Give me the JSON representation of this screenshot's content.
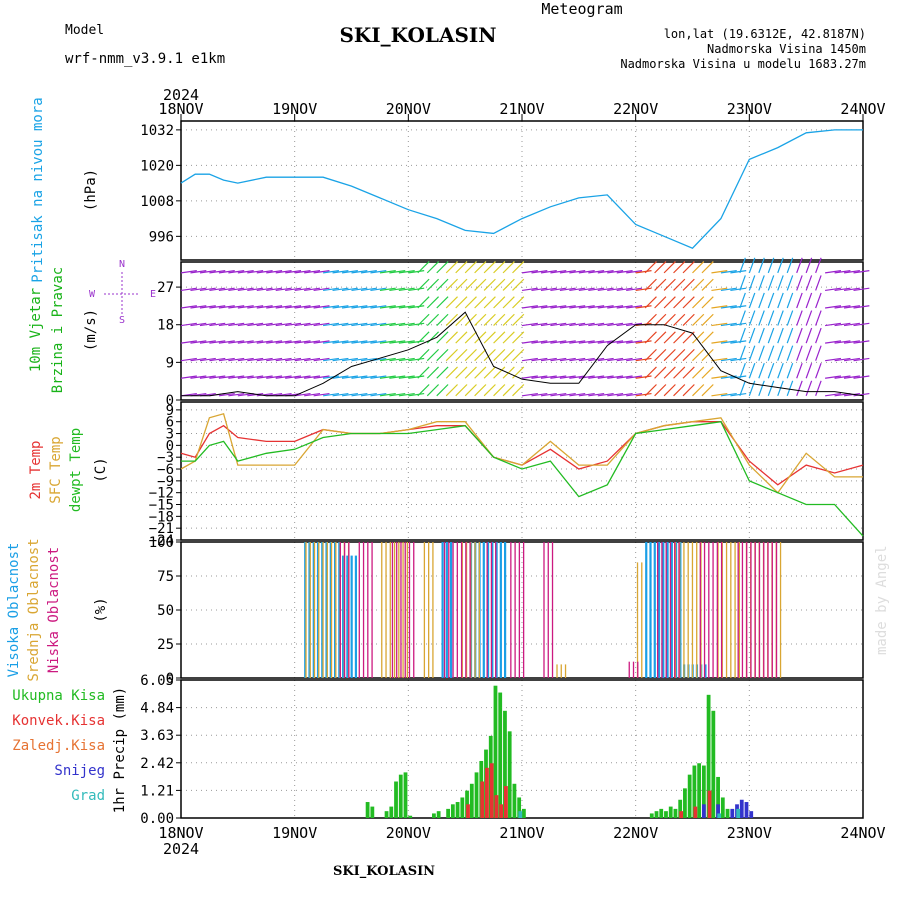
{
  "header": {
    "title": "SKI_KOLASIN",
    "model_label": "Model",
    "model_value": "wrf-nmm_v3.9.1 e1km",
    "meteogram_label": "Meteogram",
    "location": "lon,lat (19.6312E, 42.8187N)",
    "altitude": "Nadmorska Visina 1450m",
    "model_altitude": "Nadmorska Visina u modelu 1683.27m",
    "footer": "SKI_KOLASIN",
    "watermark": "made by Angel",
    "year": "2024"
  },
  "colors": {
    "pressure": "#1aa3e6",
    "wind_label": "#19b319",
    "purple": "#9a33cc",
    "t2m": "#e63333",
    "sfc": "#d9a633",
    "dewpt": "#22bb22",
    "high_cloud": "#1a9fe6",
    "mid_cloud": "#d9a633",
    "low_cloud": "#cc1a80",
    "total_precip": "#22bb22",
    "conv_precip": "#e63333",
    "frz_precip": "#e67333",
    "snow": "#3333cc",
    "grad": "#33bbbb",
    "grid": "#999999"
  },
  "time_axis": {
    "tick_labels": [
      "18NOV",
      "19NOV",
      "20NOV",
      "21NOV",
      "22NOV",
      "23NOV",
      "24NOV"
    ]
  },
  "chart_data": [
    {
      "type": "line",
      "panel": "pressure",
      "ylabel": "Pritisak na nivou mora",
      "unit": "(hPa)",
      "yticks": [
        996,
        1008,
        1020,
        1032
      ],
      "ylim": [
        988,
        1035
      ],
      "series": [
        {
          "x": [
            0,
            3,
            6,
            9,
            12,
            18,
            24,
            30,
            36,
            42,
            48,
            54,
            60,
            66,
            72,
            78,
            84,
            90,
            96,
            102,
            108,
            114,
            120,
            126,
            132,
            138,
            144
          ],
          "values": [
            1014,
            1017,
            1017,
            1015,
            1014,
            1016,
            1016,
            1016,
            1013,
            1009,
            1005,
            1002,
            998,
            997,
            1002,
            1006,
            1009,
            1010,
            1000,
            996,
            992,
            1002,
            1022,
            1026,
            1031,
            1032,
            1032
          ]
        }
      ]
    },
    {
      "type": "line",
      "panel": "wind",
      "ylabel": [
        "10m Vjetar",
        "Brzina i Pravac"
      ],
      "unit": "(m/s)",
      "compass": [
        "N",
        "W",
        "E",
        "S"
      ],
      "yticks": [
        0,
        9,
        18,
        27
      ],
      "ylim": [
        0,
        33
      ],
      "series": [
        {
          "x": [
            0,
            6,
            12,
            18,
            24,
            30,
            36,
            42,
            48,
            54,
            60,
            66,
            72,
            78,
            84,
            90,
            96,
            102,
            108,
            114,
            120,
            126,
            132,
            138,
            144
          ],
          "values": [
            1,
            1,
            2,
            1,
            1,
            4,
            8,
            10,
            12,
            15,
            21,
            8,
            5,
            4,
            4,
            13,
            18,
            18,
            16,
            7,
            4,
            3,
            2,
            2,
            1
          ]
        }
      ]
    },
    {
      "type": "line",
      "panel": "temperature",
      "ylabel": [
        "2m Temp",
        "SFC Temp",
        "dewpt Temp"
      ],
      "unit": "(C)",
      "yticks": [
        -24,
        -21,
        -18,
        -15,
        -12,
        -9,
        -6,
        -3,
        0,
        3,
        6,
        9
      ],
      "ylim": [
        -24,
        11
      ],
      "series": [
        {
          "name": "2m Temp",
          "x": [
            0,
            3,
            6,
            9,
            12,
            18,
            24,
            30,
            36,
            42,
            48,
            54,
            60,
            66,
            72,
            78,
            84,
            90,
            96,
            102,
            108,
            114,
            120,
            126,
            132,
            138,
            144
          ],
          "values": [
            -2,
            -3,
            3,
            5,
            2,
            1,
            1,
            4,
            3,
            3,
            4,
            5,
            5,
            -3,
            -5,
            -1,
            -6,
            -4,
            3,
            5,
            6,
            6,
            -4,
            -10,
            -5,
            -7,
            -5
          ]
        },
        {
          "name": "SFC Temp",
          "x": [
            0,
            3,
            6,
            9,
            12,
            18,
            24,
            30,
            36,
            42,
            48,
            54,
            60,
            66,
            72,
            78,
            84,
            90,
            96,
            102,
            108,
            114,
            120,
            126,
            132,
            138,
            144
          ],
          "values": [
            -6,
            -4,
            7,
            8,
            -5,
            -5,
            -5,
            4,
            3,
            3,
            4,
            6,
            6,
            -3,
            -5,
            1,
            -5,
            -5,
            3,
            5,
            6,
            7,
            -5,
            -12,
            -2,
            -8,
            -8
          ]
        },
        {
          "name": "dewpt Temp",
          "x": [
            0,
            3,
            6,
            9,
            12,
            18,
            24,
            30,
            36,
            42,
            48,
            54,
            60,
            66,
            72,
            78,
            84,
            90,
            96,
            102,
            108,
            114,
            120,
            126,
            132,
            138,
            144
          ],
          "values": [
            -4,
            -4,
            0,
            1,
            -4,
            -2,
            -1,
            2,
            3,
            3,
            3,
            4,
            5,
            -3,
            -6,
            -4,
            -13,
            -10,
            3,
            4,
            5,
            6,
            -9,
            -12,
            -15,
            -15,
            -23
          ]
        }
      ]
    },
    {
      "type": "bar",
      "panel": "cloud",
      "ylabel": [
        "Visoka Oblacnost",
        "Srednja Oblacnost",
        "Niska Oblacnost"
      ],
      "unit": "(%)",
      "yticks": [
        0,
        25,
        50,
        75,
        100
      ],
      "ylim": [
        0,
        100
      ],
      "series": [
        {
          "name": "Visoka Oblacnost",
          "segments": [
            [
              26,
              34,
              100
            ],
            [
              34,
              37,
              90
            ],
            [
              55,
              57,
              100
            ],
            [
              61,
              69,
              100
            ],
            [
              98,
              106,
              100
            ],
            [
              106,
              111,
              10
            ]
          ]
        },
        {
          "name": "Srednja Oblacnost",
          "segments": [
            [
              26,
              35,
              100
            ],
            [
              42,
              48,
              100
            ],
            [
              51,
              53,
              100
            ],
            [
              59,
              63,
              100
            ],
            [
              79,
              81,
              10
            ],
            [
              96,
              97,
              85
            ],
            [
              104,
              110,
              100
            ],
            [
              113,
              118,
              100
            ],
            [
              119,
              127,
              100
            ]
          ]
        },
        {
          "name": "Niska Oblacnost",
          "segments": [
            [
              33,
              35,
              100
            ],
            [
              37,
              40,
              100
            ],
            [
              44,
              49,
              100
            ],
            [
              55,
              61,
              100
            ],
            [
              64,
              66,
              100
            ],
            [
              69,
              72,
              100
            ],
            [
              76,
              78,
              100
            ],
            [
              94,
              96,
              12
            ],
            [
              100,
              105,
              100
            ],
            [
              109,
              114,
              100
            ],
            [
              117,
              126,
              100
            ]
          ]
        }
      ]
    },
    {
      "type": "bar",
      "panel": "precip",
      "legend": [
        "Ukupna Kisa",
        "Konvek.Kisa",
        "Zaledj.Kisa",
        "Snijeg",
        "Grad"
      ],
      "ylabel": "1hr Precip (mm)",
      "yticks": [
        0,
        1.21,
        2.42,
        3.63,
        4.84,
        6.05
      ],
      "ylim": [
        0,
        6.05
      ],
      "total": [
        {
          "h": 39,
          "v": 0.7
        },
        {
          "h": 40,
          "v": 0.5
        },
        {
          "h": 43,
          "v": 0.3
        },
        {
          "h": 44,
          "v": 0.5
        },
        {
          "h": 45,
          "v": 1.6
        },
        {
          "h": 46,
          "v": 1.9
        },
        {
          "h": 47,
          "v": 2.0
        },
        {
          "h": 48,
          "v": 0.1
        },
        {
          "h": 53,
          "v": 0.2
        },
        {
          "h": 54,
          "v": 0.3
        },
        {
          "h": 56,
          "v": 0.4
        },
        {
          "h": 57,
          "v": 0.6
        },
        {
          "h": 58,
          "v": 0.7
        },
        {
          "h": 59,
          "v": 0.9
        },
        {
          "h": 60,
          "v": 1.2
        },
        {
          "h": 61,
          "v": 1.5
        },
        {
          "h": 62,
          "v": 2.0
        },
        {
          "h": 63,
          "v": 2.5
        },
        {
          "h": 64,
          "v": 3.0
        },
        {
          "h": 65,
          "v": 3.6
        },
        {
          "h": 66,
          "v": 5.8
        },
        {
          "h": 67,
          "v": 5.5
        },
        {
          "h": 68,
          "v": 4.7
        },
        {
          "h": 69,
          "v": 3.8
        },
        {
          "h": 70,
          "v": 1.5
        },
        {
          "h": 71,
          "v": 0.9
        },
        {
          "h": 72,
          "v": 0.4
        },
        {
          "h": 99,
          "v": 0.2
        },
        {
          "h": 100,
          "v": 0.3
        },
        {
          "h": 101,
          "v": 0.4
        },
        {
          "h": 102,
          "v": 0.3
        },
        {
          "h": 103,
          "v": 0.5
        },
        {
          "h": 104,
          "v": 0.4
        },
        {
          "h": 105,
          "v": 0.8
        },
        {
          "h": 106,
          "v": 1.3
        },
        {
          "h": 107,
          "v": 1.9
        },
        {
          "h": 108,
          "v": 2.3
        },
        {
          "h": 109,
          "v": 2.4
        },
        {
          "h": 110,
          "v": 2.3
        },
        {
          "h": 111,
          "v": 5.4
        },
        {
          "h": 112,
          "v": 4.7
        },
        {
          "h": 113,
          "v": 1.8
        },
        {
          "h": 114,
          "v": 0.9
        },
        {
          "h": 115,
          "v": 0.4
        }
      ],
      "convective": [
        {
          "h": 60,
          "v": 0.6
        },
        {
          "h": 63,
          "v": 1.6
        },
        {
          "h": 64,
          "v": 2.2
        },
        {
          "h": 65,
          "v": 2.4
        },
        {
          "h": 66,
          "v": 1.0
        },
        {
          "h": 67,
          "v": 0.6
        },
        {
          "h": 68,
          "v": 1.4
        },
        {
          "h": 105,
          "v": 0.3
        },
        {
          "h": 108,
          "v": 0.5
        },
        {
          "h": 111,
          "v": 1.2
        }
      ],
      "snow": [
        {
          "h": 110,
          "v": 0.6
        },
        {
          "h": 113,
          "v": 0.6
        },
        {
          "h": 116,
          "v": 0.4
        },
        {
          "h": 117,
          "v": 0.6
        },
        {
          "h": 118,
          "v": 0.8
        },
        {
          "h": 119,
          "v": 0.7
        },
        {
          "h": 120,
          "v": 0.3
        }
      ],
      "grad": [
        {
          "h": 71,
          "v": 0.3
        },
        {
          "h": 113,
          "v": 0.2
        },
        {
          "h": 117,
          "v": 0.4
        }
      ]
    }
  ]
}
